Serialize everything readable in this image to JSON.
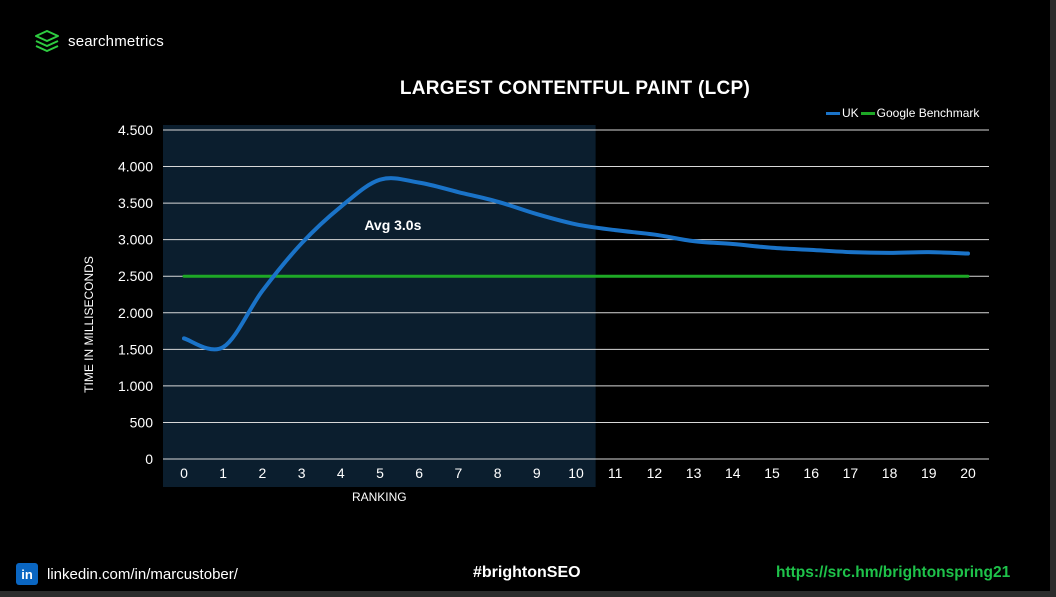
{
  "brand": {
    "name": "searchmetrics",
    "logo_icon": "searchmetrics-logo-icon",
    "logo_color": "#2ecc40"
  },
  "chart_data": {
    "type": "line",
    "title": "LARGEST CONTENTFUL PAINT (LCP)",
    "xlabel": "RANKING",
    "ylabel": "TIME IN MILLISECONDS",
    "x": [
      0,
      1,
      2,
      3,
      4,
      5,
      6,
      7,
      8,
      9,
      10,
      11,
      12,
      13,
      14,
      15,
      16,
      17,
      18,
      19,
      20
    ],
    "ylim": [
      0,
      4500
    ],
    "yticks": [
      0,
      500,
      1000,
      1500,
      2000,
      2500,
      3000,
      3500,
      4000,
      4500
    ],
    "ytick_labels": [
      "0",
      "500",
      "1.000",
      "1.500",
      "2.000",
      "2.500",
      "3.000",
      "3.500",
      "4.000",
      "4.500"
    ],
    "grid": true,
    "legend_position": "top-right",
    "series": [
      {
        "name": "UK",
        "color": "#1a73c8",
        "values": [
          1650,
          1530,
          2300,
          2950,
          3450,
          3820,
          3780,
          3650,
          3520,
          3350,
          3210,
          3130,
          3070,
          2980,
          2940,
          2890,
          2860,
          2830,
          2820,
          2830,
          2810
        ]
      },
      {
        "name": "Google Benchmark",
        "color": "#1ea826",
        "values": [
          2500,
          2500,
          2500,
          2500,
          2500,
          2500,
          2500,
          2500,
          2500,
          2500,
          2500,
          2500,
          2500,
          2500,
          2500,
          2500,
          2500,
          2500,
          2500,
          2500,
          2500
        ]
      }
    ],
    "highlight_range": [
      0,
      10
    ],
    "highlight_color": "#0b1e2e",
    "annotation": {
      "text": "Avg 3.0s",
      "x": 4.6,
      "y": 3200
    }
  },
  "footer": {
    "linkedin_icon": "linkedin-icon",
    "linkedin_text": "linkedin.com/in/marcustober/",
    "hashtag": "#brightonSEO",
    "url": "https://src.hm/brightonspring21"
  }
}
